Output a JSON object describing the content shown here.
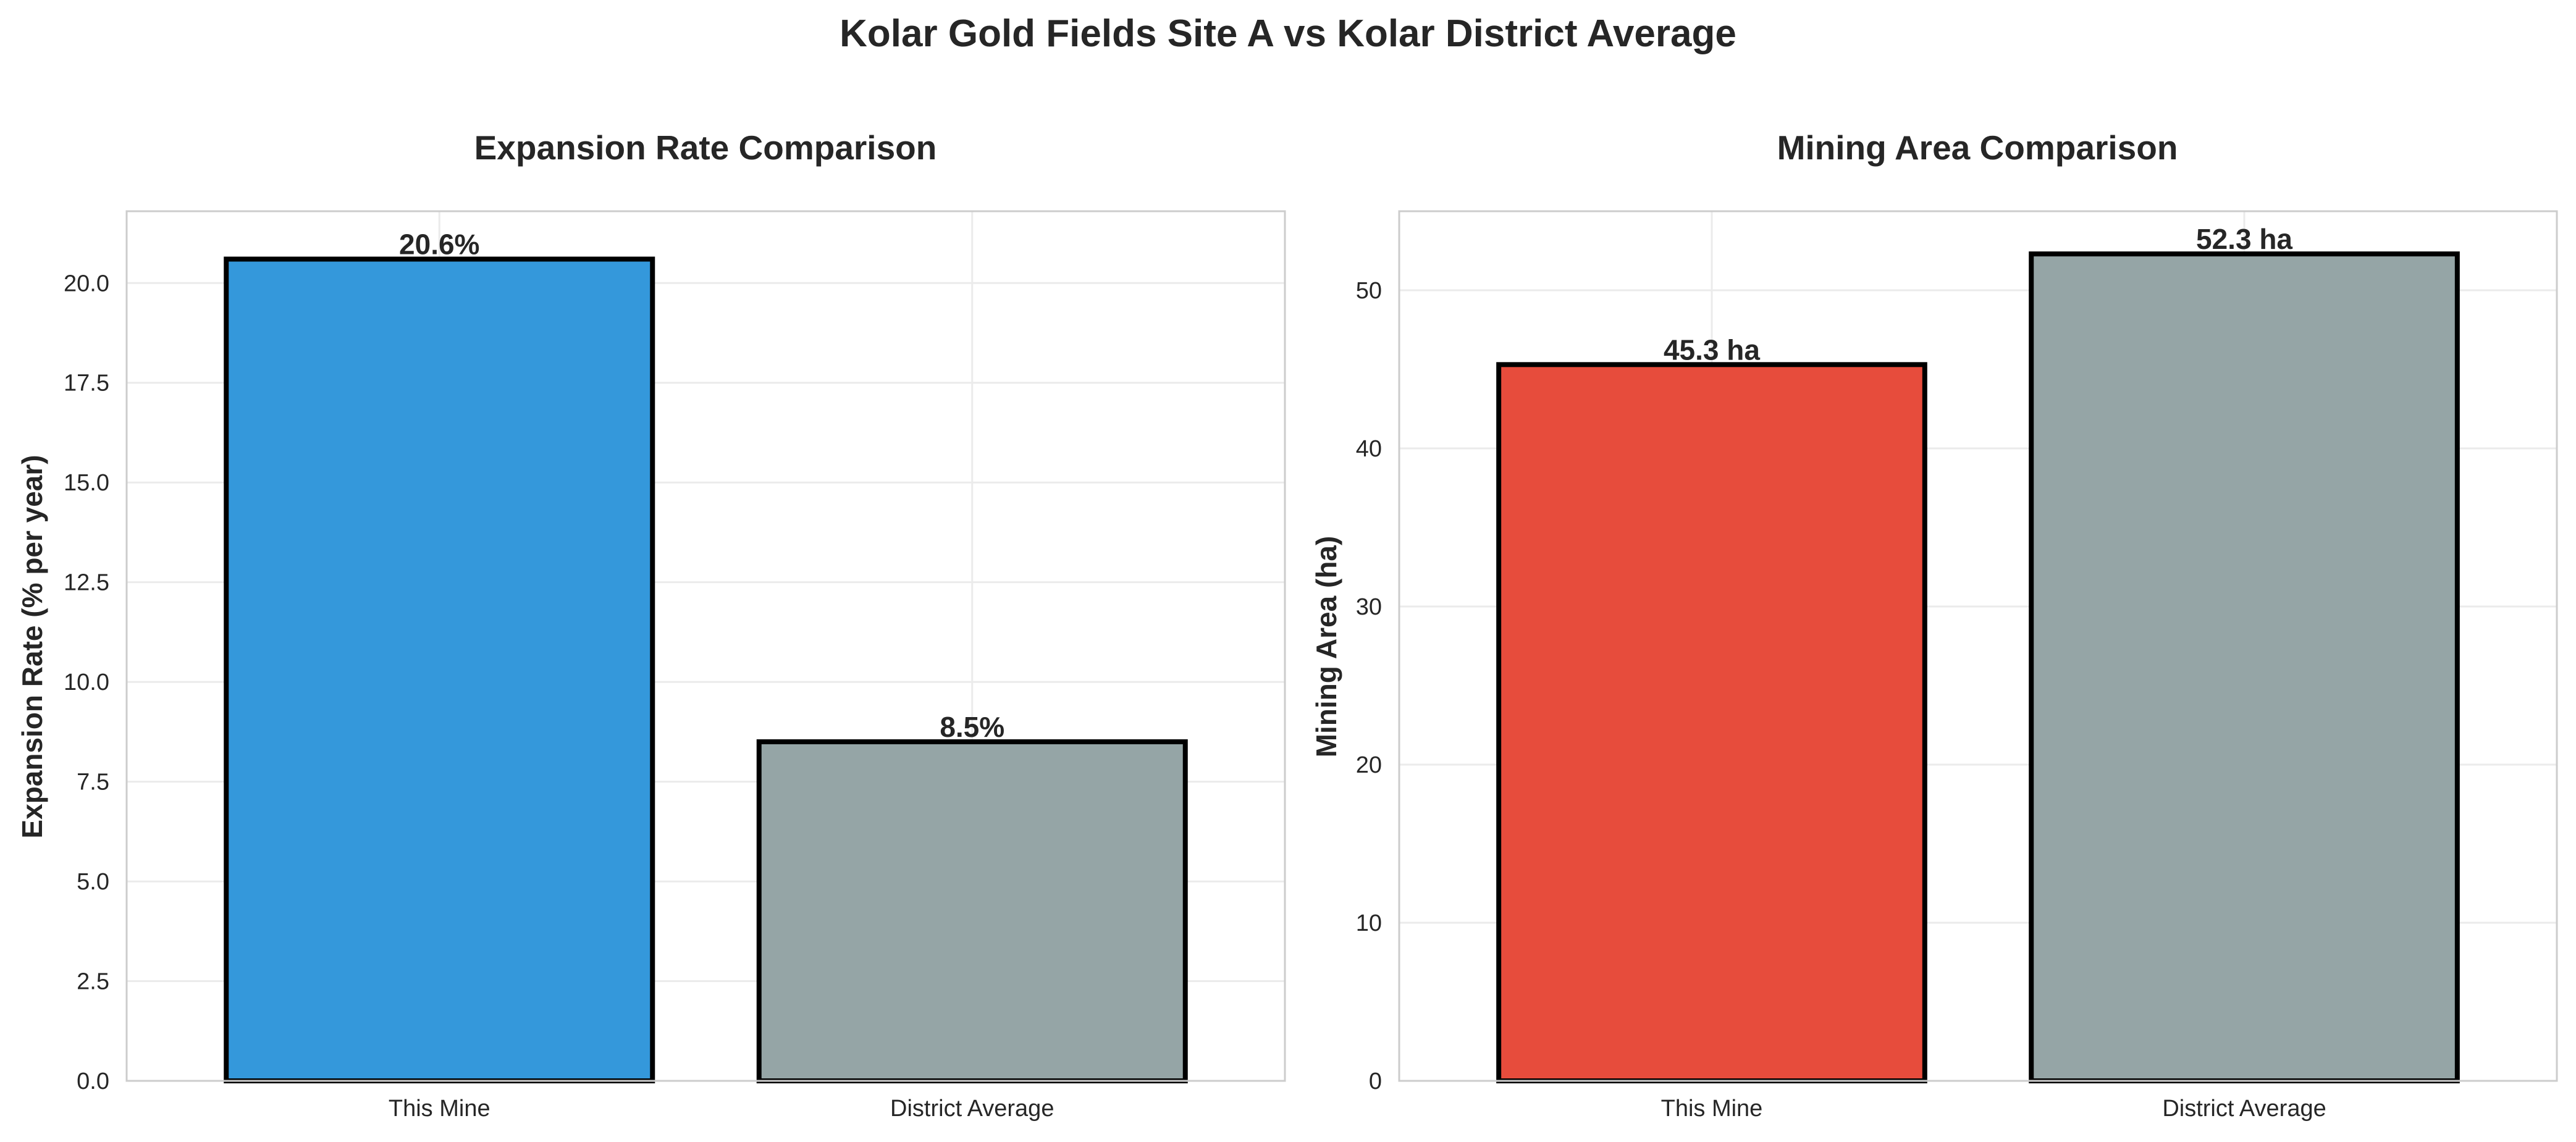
{
  "figure": {
    "title": "Kolar Gold Fields Site A vs Kolar District Average"
  },
  "chart_data": [
    {
      "type": "bar",
      "title": "Expansion Rate Comparison",
      "xlabel": "",
      "ylabel": "Expansion Rate (% per year)",
      "categories": [
        "This Mine",
        "District Average"
      ],
      "values": [
        20.6,
        8.5
      ],
      "value_labels": [
        "20.6%",
        "8.5%"
      ],
      "colors": [
        "#3498db",
        "#95a5a6"
      ],
      "edge_color": "#000000",
      "ylim": [
        0,
        21.8
      ],
      "yticks": [
        0,
        2.5,
        5,
        7.5,
        10,
        12.5,
        15,
        17.5,
        20
      ],
      "ytick_labels": [
        "0.0",
        "2.5",
        "5.0",
        "7.5",
        "10.0",
        "12.5",
        "15.0",
        "17.5",
        "20.0"
      ],
      "grid": true
    },
    {
      "type": "bar",
      "title": "Mining Area Comparison",
      "xlabel": "",
      "ylabel": "Mining Area (ha)",
      "categories": [
        "This Mine",
        "District Average"
      ],
      "values": [
        45.3,
        52.3
      ],
      "value_labels": [
        "45.3 ha",
        "52.3 ha"
      ],
      "colors": [
        "#e74c3c",
        "#95a5a6"
      ],
      "edge_color": "#000000",
      "ylim": [
        0,
        55.0
      ],
      "yticks": [
        0,
        10,
        20,
        30,
        40,
        50
      ],
      "ytick_labels": [
        "0",
        "10",
        "20",
        "30",
        "40",
        "50"
      ],
      "grid": true
    }
  ]
}
